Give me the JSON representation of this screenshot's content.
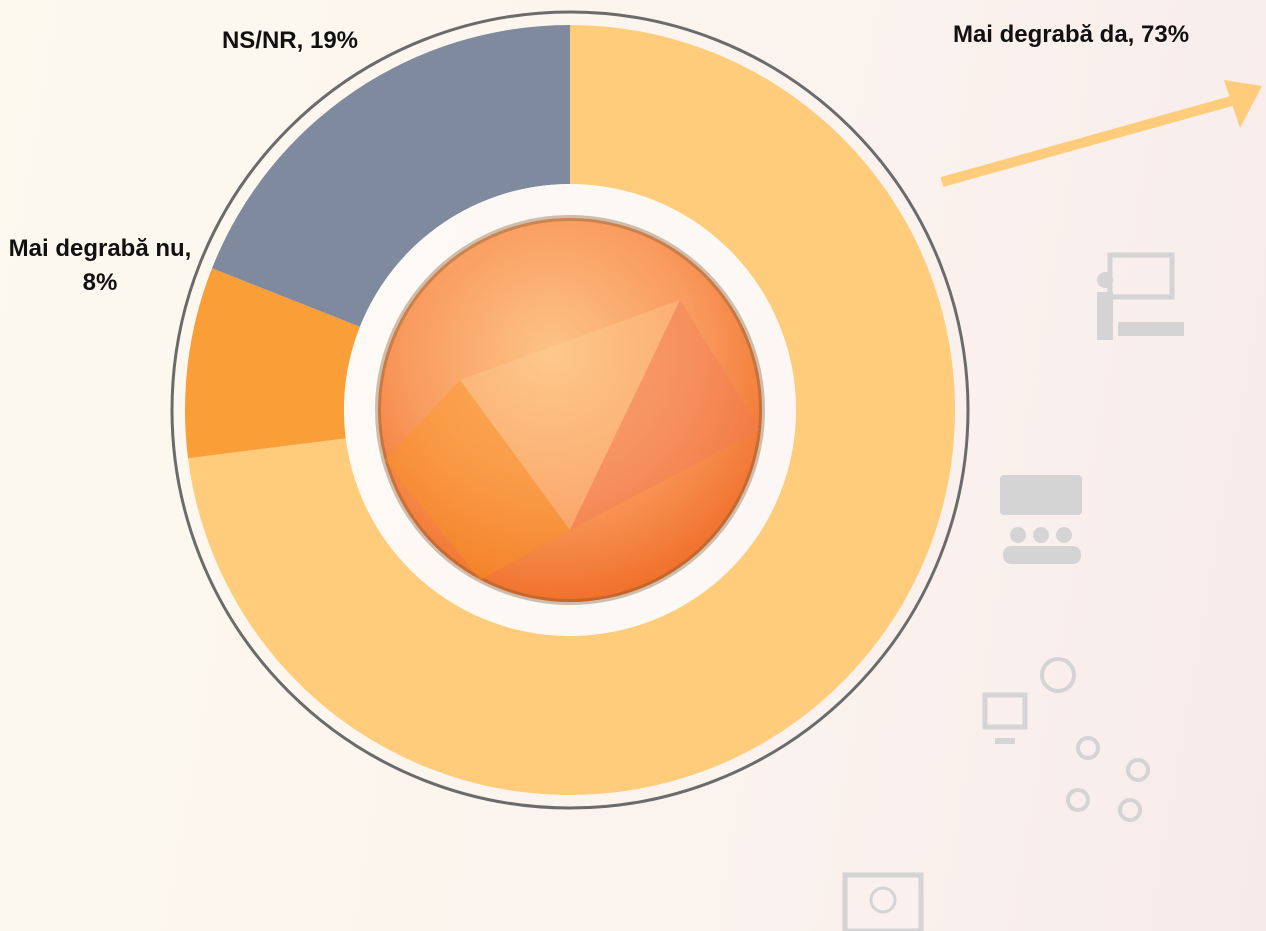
{
  "chart_data": {
    "type": "donut",
    "values": [
      73,
      8,
      19
    ],
    "value_labels": [
      "Mai degrabă da, 73%",
      "Mai degrabă nu, 8%",
      "NS/NR, 19%"
    ],
    "colors": [
      "#FECC7B",
      "#FA9E38",
      "#7F8A9E"
    ]
  }
}
